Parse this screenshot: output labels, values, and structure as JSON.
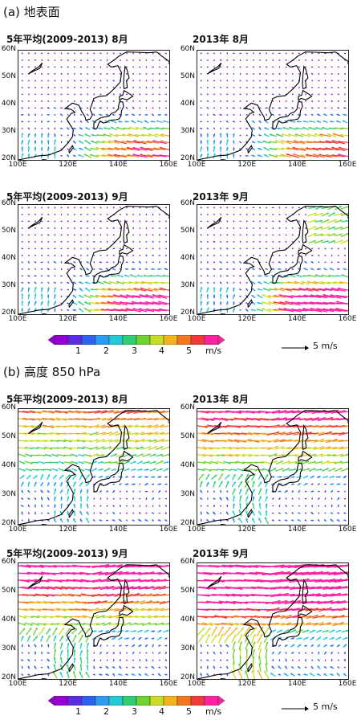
{
  "sections": [
    {
      "title": "(a) 地表面",
      "panels": [
        "5年平均(2009-2013) 8月",
        "2013年 8月",
        "5年平均(2009-2013) 9月",
        "2013年 9月"
      ]
    },
    {
      "title": "(b) 高度 850 hPa",
      "panels": [
        "5年平均(2009-2013) 8月",
        "2013年 8月",
        "5年平均(2009-2013) 9月",
        "2013年 9月"
      ]
    }
  ],
  "lat_labels": [
    "60N",
    "50N",
    "40N",
    "30N",
    "20N"
  ],
  "lon_labels": [
    "100E",
    "120E",
    "140E",
    "160E"
  ],
  "colorbar": {
    "ticks": [
      "1",
      "2",
      "3",
      "4",
      "5"
    ],
    "unit": "m/s",
    "colors": [
      "#9400d3",
      "#5a2ce6",
      "#2d62f0",
      "#2a9cf2",
      "#23c8d4",
      "#2fce72",
      "#6ed233",
      "#c8dc26",
      "#f2b41e",
      "#f4761e",
      "#f23838",
      "#ff22a0"
    ]
  },
  "reference_vector": {
    "label": "5 m/s"
  }
}
